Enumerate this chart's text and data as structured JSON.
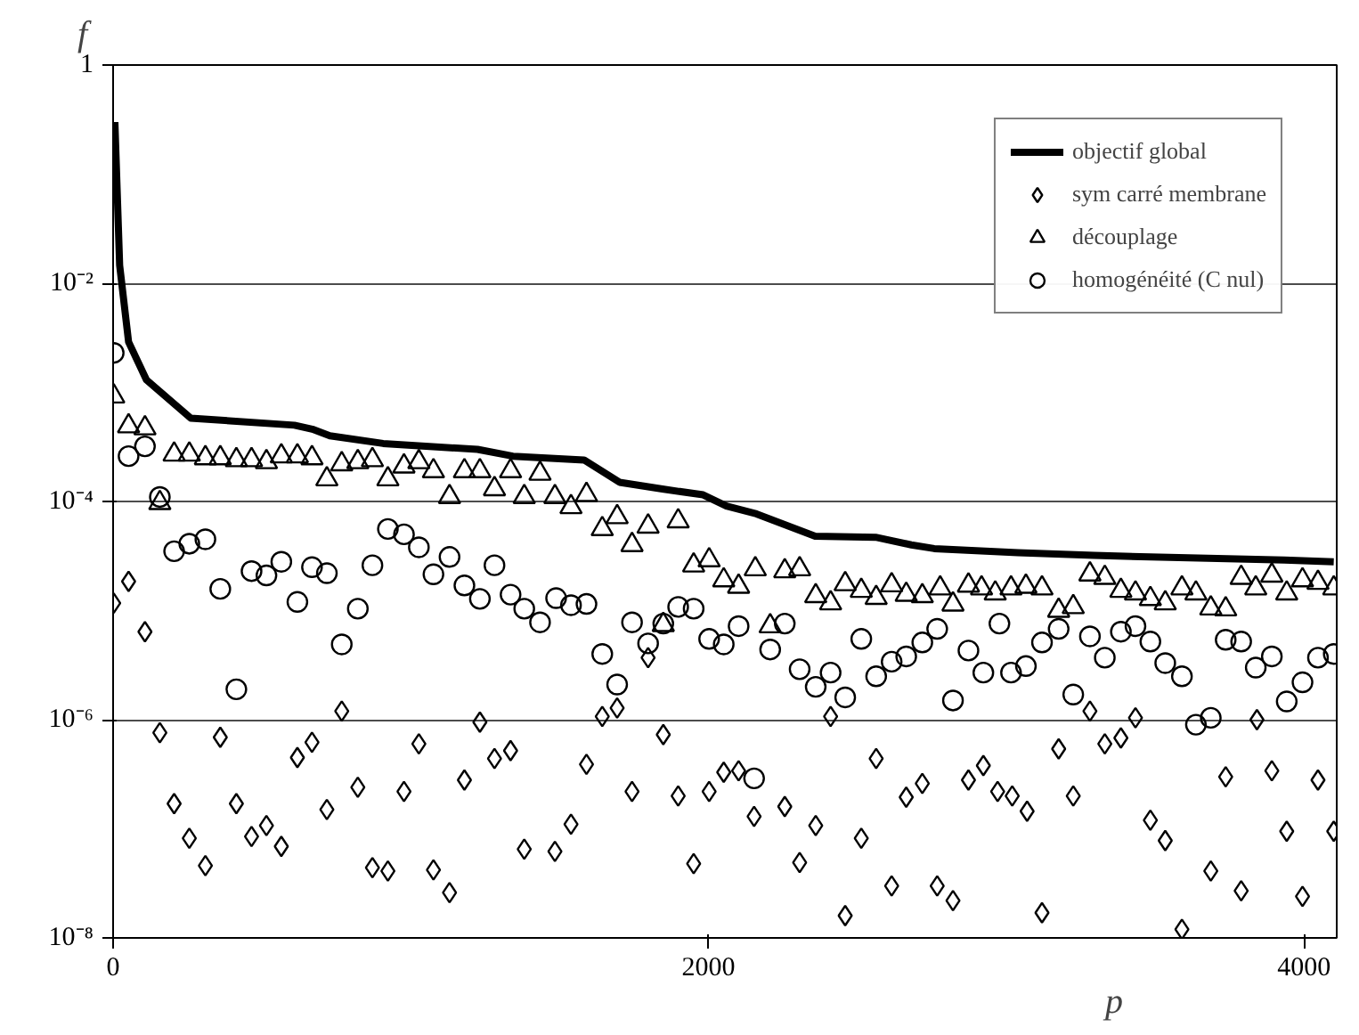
{
  "chart_data": {
    "type": "scatter",
    "xlabel": "p",
    "ylabel": "f",
    "log": "y",
    "grid": "y",
    "legend": "top right",
    "xlim": [
      0,
      4110
    ],
    "xticks": [
      0,
      2000,
      4000
    ],
    "ylim": [
      1e-08,
      1
    ],
    "yticks": [
      {
        "value": 1e-08,
        "label": "10⁻⁸"
      },
      {
        "value": 1e-06,
        "label": "10⁻⁶"
      },
      {
        "value": 0.0001,
        "label": "10⁻⁴"
      },
      {
        "value": 0.01,
        "label": "10⁻²"
      },
      1
    ],
    "series": [
      {
        "name": "objectif global",
        "type": "line",
        "color": "#000000",
        "x": [
          6,
          22,
          52,
          112,
          261,
          609,
          669,
          728,
          907,
          1224,
          1343,
          1582,
          1701,
          1845,
          1982,
          2060,
          2161,
          2358,
          2561,
          2681,
          2758,
          3039,
          3295,
          3934,
          4100
        ],
        "values": [
          0.3,
          0.0146,
          0.0029,
          0.0013,
          0.00058,
          0.0005,
          0.00046,
          0.0004,
          0.00034,
          0.0003,
          0.00026,
          0.00024,
          0.00015,
          0.00013,
          0.000115,
          9.1e-05,
          7.7e-05,
          4.8e-05,
          4.7e-05,
          4e-05,
          3.7e-05,
          3.4e-05,
          3.2e-05,
          2.9e-05,
          2.8e-05
        ]
      },
      {
        "name": "sym carré membrane",
        "marker": "diamond",
        "color": "#000000",
        "x": [
          2,
          52,
          107,
          157,
          205,
          256,
          310,
          360,
          414,
          465,
          515,
          565,
          619,
          668,
          718,
          768,
          822,
          871,
          923,
          977,
          1027,
          1076,
          1130,
          1180,
          1232,
          1281,
          1335,
          1381,
          1484,
          1538,
          1590,
          1643,
          1693,
          1743,
          1797,
          1848,
          1898,
          1950,
          2002,
          2051,
          2101,
          2153,
          2256,
          2306,
          2360,
          2410,
          2459,
          2513,
          2563,
          2615,
          2664,
          2718,
          2768,
          2821,
          2873,
          2923,
          2971,
          3020,
          3070,
          3120,
          3176,
          3225,
          3281,
          3331,
          3385,
          3434,
          3484,
          3534,
          3590,
          3687,
          3737,
          3789,
          3842,
          3892,
          3942,
          3995,
          4047,
          4100
        ],
        "values": [
          1.17e-05,
          1.85e-05,
          6.4e-06,
          7.6e-07,
          1.7e-07,
          8.2e-08,
          4.6e-08,
          6.9e-07,
          1.7e-07,
          8.5e-08,
          1.07e-07,
          6.9e-08,
          4.5e-07,
          6.2e-07,
          1.5e-07,
          1.2e-06,
          2.4e-07,
          4.4e-08,
          4.1e-08,
          2.2e-07,
          6e-07,
          4.2e-08,
          2.6e-08,
          2.8e-07,
          9.5e-07,
          4.4e-07,
          5.2e-07,
          6.5e-08,
          6.2e-08,
          1.1e-07,
          3.9e-07,
          1.07e-06,
          1.28e-06,
          2.2e-07,
          3.7e-06,
          7.3e-07,
          2e-07,
          4.8e-08,
          2.2e-07,
          3.3e-07,
          3.4e-07,
          1.3e-07,
          1.6e-07,
          4.9e-08,
          1.07e-07,
          1.07e-06,
          1.6e-08,
          8.2e-08,
          4.4e-07,
          3e-08,
          1.95e-07,
          2.6e-07,
          3e-08,
          2.2e-08,
          2.8e-07,
          3.8e-07,
          2.2e-07,
          2e-07,
          1.45e-07,
          1.7e-08,
          5.4e-07,
          2e-07,
          1.2e-06,
          6e-07,
          6.8e-07,
          1.04e-06,
          1.2e-07,
          7.8e-08,
          1.2e-08,
          4.1e-08,
          3e-07,
          2.7e-08,
          1e-06,
          3.4e-07,
          9.5e-08,
          2.4e-08,
          2.8e-07,
          9.5e-08
        ]
      },
      {
        "name": "découplage",
        "marker": "triangle",
        "color": "#000000",
        "x": [
          2,
          52,
          107,
          157,
          205,
          256,
          310,
          360,
          414,
          465,
          515,
          565,
          619,
          668,
          718,
          768,
          822,
          871,
          923,
          977,
          1027,
          1076,
          1130,
          1180,
          1232,
          1281,
          1335,
          1381,
          1434,
          1484,
          1538,
          1590,
          1643,
          1693,
          1743,
          1797,
          1848,
          1898,
          1950,
          2002,
          2051,
          2101,
          2157,
          2207,
          2256,
          2306,
          2360,
          2410,
          2459,
          2513,
          2563,
          2615,
          2664,
          2718,
          2778,
          2821,
          2873,
          2917,
          2963,
          3016,
          3066,
          3120,
          3176,
          3225,
          3281,
          3331,
          3385,
          3434,
          3484,
          3534,
          3590,
          3637,
          3687,
          3737,
          3789,
          3838,
          3892,
          3942,
          3995,
          4047,
          4100
        ],
        "values": [
          0.00092,
          0.00049,
          0.00047,
          9.7e-05,
          0.00027,
          0.00027,
          0.00025,
          0.00025,
          0.00024,
          0.00024,
          0.00023,
          0.00026,
          0.00026,
          0.00025,
          0.00016,
          0.00022,
          0.00023,
          0.00024,
          0.00016,
          0.00021,
          0.00023,
          0.00019,
          0.00011,
          0.00019,
          0.00019,
          0.00013,
          0.00019,
          0.00011,
          0.00018,
          0.00011,
          8.9e-05,
          0.000115,
          5.6e-05,
          7.2e-05,
          4e-05,
          5.9e-05,
          7.4e-06,
          6.6e-05,
          2.6e-05,
          2.9e-05,
          1.9e-05,
          1.66e-05,
          2.4e-05,
          7.2e-06,
          2.3e-05,
          2.4e-05,
          1.36e-05,
          1.17e-05,
          1.75e-05,
          1.52e-05,
          1.31e-05,
          1.71e-05,
          1.4e-05,
          1.36e-05,
          1.6e-05,
          1.14e-05,
          1.7e-05,
          1.6e-05,
          1.44e-05,
          1.6e-05,
          1.66e-05,
          1.6e-05,
          1e-05,
          1.08e-05,
          2.15e-05,
          2e-05,
          1.52e-05,
          1.44e-05,
          1.28e-05,
          1.17e-05,
          1.6e-05,
          1.44e-05,
          1.05e-05,
          1.03e-05,
          2e-05,
          1.6e-05,
          2.1e-05,
          1.44e-05,
          1.9e-05,
          1.8e-05,
          1.6e-05
        ]
      },
      {
        "name": "homogénéité (C nul)",
        "marker": "circle",
        "color": "#000000",
        "x": [
          2,
          52,
          107,
          157,
          205,
          256,
          310,
          360,
          414,
          465,
          515,
          565,
          619,
          668,
          718,
          768,
          822,
          871,
          923,
          977,
          1027,
          1076,
          1130,
          1180,
          1232,
          1281,
          1335,
          1381,
          1434,
          1488,
          1538,
          1590,
          1643,
          1693,
          1743,
          1797,
          1848,
          1898,
          1950,
          2002,
          2051,
          2101,
          2153,
          2207,
          2256,
          2306,
          2360,
          2410,
          2459,
          2513,
          2563,
          2615,
          2664,
          2718,
          2768,
          2821,
          2873,
          2923,
          2977,
          3016,
          3066,
          3120,
          3176,
          3225,
          3281,
          3331,
          3385,
          3434,
          3484,
          3534,
          3590,
          3637,
          3687,
          3737,
          3789,
          3838,
          3892,
          3942,
          3995,
          4047,
          4100
        ],
        "values": [
          0.0023,
          0.00026,
          0.00032,
          0.00011,
          3.5e-05,
          4.1e-05,
          4.5e-05,
          1.58e-05,
          1.9e-06,
          2.3e-05,
          2.1e-05,
          2.8e-05,
          1.2e-05,
          2.5e-05,
          2.2e-05,
          4.9e-06,
          1.04e-05,
          2.6e-05,
          5.6e-05,
          5e-05,
          3.8e-05,
          2.15e-05,
          3.1e-05,
          1.7e-05,
          1.28e-05,
          2.6e-05,
          1.4e-05,
          1.04e-05,
          7.8e-06,
          1.3e-05,
          1.12e-05,
          1.15e-05,
          4e-06,
          2.1e-06,
          7.8e-06,
          5e-06,
          7.6e-06,
          1.08e-05,
          1.04e-05,
          5.5e-06,
          4.9e-06,
          7.2e-06,
          2.9e-07,
          4.4e-06,
          7.6e-06,
          2.9e-06,
          2e-06,
          2.7e-06,
          1.6e-06,
          5.5e-06,
          2.5e-06,
          3.4e-06,
          3.8e-06,
          5.1e-06,
          6.8e-06,
          1.5e-06,
          4.3e-06,
          2.7e-06,
          7.6e-06,
          2.7e-06,
          3.1e-06,
          5.1e-06,
          6.8e-06,
          1.7e-06,
          5.8e-06,
          3.7e-06,
          6.4e-06,
          7.2e-06,
          5.2e-06,
          3.3e-06,
          2.5e-06,
          9e-07,
          1.04e-06,
          5.4e-06,
          5.2e-06,
          3e-06,
          3.8e-06,
          1.47e-06,
          2.2e-06,
          3.7e-06,
          4e-06
        ]
      }
    ]
  }
}
